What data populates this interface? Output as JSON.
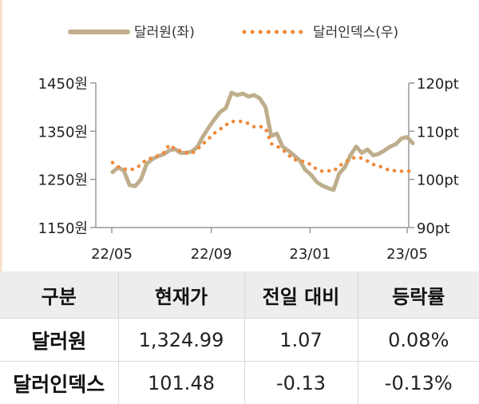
{
  "chart_data": {
    "type": "line",
    "x_ticks": [
      "22/05",
      "22/09",
      "23/01",
      "23/05"
    ],
    "y_left": {
      "ticks": [
        "1450원",
        "1350원",
        "1250원",
        "1150원"
      ],
      "min": 1150,
      "max": 1450
    },
    "y_right": {
      "ticks": [
        "120pt",
        "110pt",
        "100pt",
        "90pt"
      ],
      "min": 90,
      "max": 120
    },
    "series": [
      {
        "name": "달러원(좌)",
        "axis": "left",
        "color": "#bfae8c",
        "style": "solid",
        "points": [
          [
            "2022-05-02",
            1265
          ],
          [
            "2022-05-09",
            1275
          ],
          [
            "2022-05-16",
            1268
          ],
          [
            "2022-05-23",
            1238
          ],
          [
            "2022-05-30",
            1236
          ],
          [
            "2022-06-06",
            1250
          ],
          [
            "2022-06-13",
            1282
          ],
          [
            "2022-06-20",
            1292
          ],
          [
            "2022-06-27",
            1298
          ],
          [
            "2022-07-04",
            1302
          ],
          [
            "2022-07-11",
            1310
          ],
          [
            "2022-07-18",
            1313
          ],
          [
            "2022-07-25",
            1305
          ],
          [
            "2022-08-01",
            1305
          ],
          [
            "2022-08-08",
            1308
          ],
          [
            "2022-08-15",
            1318
          ],
          [
            "2022-08-22",
            1340
          ],
          [
            "2022-08-29",
            1358
          ],
          [
            "2022-09-05",
            1375
          ],
          [
            "2022-09-12",
            1390
          ],
          [
            "2022-09-19",
            1398
          ],
          [
            "2022-09-26",
            1430
          ],
          [
            "2022-10-03",
            1425
          ],
          [
            "2022-10-10",
            1428
          ],
          [
            "2022-10-17",
            1422
          ],
          [
            "2022-10-24",
            1425
          ],
          [
            "2022-10-31",
            1418
          ],
          [
            "2022-11-07",
            1400
          ],
          [
            "2022-11-14",
            1340
          ],
          [
            "2022-11-21",
            1345
          ],
          [
            "2022-11-28",
            1318
          ],
          [
            "2022-12-05",
            1310
          ],
          [
            "2022-12-12",
            1300
          ],
          [
            "2022-12-19",
            1290
          ],
          [
            "2022-12-26",
            1270
          ],
          [
            "2023-01-02",
            1260
          ],
          [
            "2023-01-09",
            1245
          ],
          [
            "2023-01-16",
            1237
          ],
          [
            "2023-01-23",
            1232
          ],
          [
            "2023-01-30",
            1228
          ],
          [
            "2023-02-06",
            1262
          ],
          [
            "2023-02-13",
            1275
          ],
          [
            "2023-02-20",
            1300
          ],
          [
            "2023-02-27",
            1318
          ],
          [
            "2023-03-06",
            1305
          ],
          [
            "2023-03-13",
            1312
          ],
          [
            "2023-03-20",
            1300
          ],
          [
            "2023-03-27",
            1303
          ],
          [
            "2023-04-03",
            1310
          ],
          [
            "2023-04-10",
            1318
          ],
          [
            "2023-04-17",
            1323
          ],
          [
            "2023-04-24",
            1335
          ],
          [
            "2023-05-01",
            1338
          ],
          [
            "2023-05-08",
            1325
          ]
        ]
      },
      {
        "name": "달러인덱스(우)",
        "axis": "right",
        "color": "#f08a3c",
        "style": "dotted",
        "points": [
          [
            "2022-05-02",
            103.5
          ],
          [
            "2022-05-09",
            102.6
          ],
          [
            "2022-05-16",
            102.2
          ],
          [
            "2022-05-23",
            101.9
          ],
          [
            "2022-05-30",
            102.3
          ],
          [
            "2022-06-06",
            103.0
          ],
          [
            "2022-06-13",
            104.2
          ],
          [
            "2022-06-20",
            104.4
          ],
          [
            "2022-06-27",
            104.9
          ],
          [
            "2022-07-04",
            105.5
          ],
          [
            "2022-07-11",
            107.2
          ],
          [
            "2022-07-18",
            106.3
          ],
          [
            "2022-07-25",
            105.9
          ],
          [
            "2022-08-01",
            105.6
          ],
          [
            "2022-08-08",
            105.4
          ],
          [
            "2022-08-15",
            106.3
          ],
          [
            "2022-08-22",
            107.4
          ],
          [
            "2022-08-29",
            108.5
          ],
          [
            "2022-09-05",
            109.6
          ],
          [
            "2022-09-12",
            110.4
          ],
          [
            "2022-09-19",
            111.3
          ],
          [
            "2022-09-26",
            112.0
          ],
          [
            "2022-10-03",
            112.1
          ],
          [
            "2022-10-10",
            112.0
          ],
          [
            "2022-10-17",
            111.6
          ],
          [
            "2022-10-24",
            110.9
          ],
          [
            "2022-10-31",
            111.0
          ],
          [
            "2022-11-07",
            110.6
          ],
          [
            "2022-11-14",
            107.4
          ],
          [
            "2022-11-21",
            106.9
          ],
          [
            "2022-11-28",
            106.2
          ],
          [
            "2022-12-05",
            105.1
          ],
          [
            "2022-12-12",
            104.1
          ],
          [
            "2022-12-19",
            103.9
          ],
          [
            "2022-12-26",
            103.6
          ],
          [
            "2023-01-02",
            103.1
          ],
          [
            "2023-01-09",
            102.1
          ],
          [
            "2023-01-16",
            101.7
          ],
          [
            "2023-01-23",
            101.8
          ],
          [
            "2023-01-30",
            101.7
          ],
          [
            "2023-02-06",
            102.8
          ],
          [
            "2023-02-13",
            103.5
          ],
          [
            "2023-02-20",
            104.3
          ],
          [
            "2023-02-27",
            104.6
          ],
          [
            "2023-03-06",
            104.4
          ],
          [
            "2023-03-13",
            103.8
          ],
          [
            "2023-03-20",
            103.1
          ],
          [
            "2023-03-27",
            102.8
          ],
          [
            "2023-04-03",
            102.3
          ],
          [
            "2023-04-10",
            101.8
          ],
          [
            "2023-04-17",
            101.8
          ],
          [
            "2023-04-24",
            101.7
          ],
          [
            "2023-05-01",
            101.8
          ],
          [
            "2023-05-08",
            101.5
          ]
        ]
      }
    ]
  },
  "table": {
    "headers": [
      "구분",
      "현재가",
      "전일 대비",
      "등락률"
    ],
    "rows": [
      [
        "달러원",
        "1,324.99",
        "1.07",
        "0.08%"
      ],
      [
        "달러인덱스",
        "101.48",
        "-0.13",
        "-0.13%"
      ]
    ]
  }
}
